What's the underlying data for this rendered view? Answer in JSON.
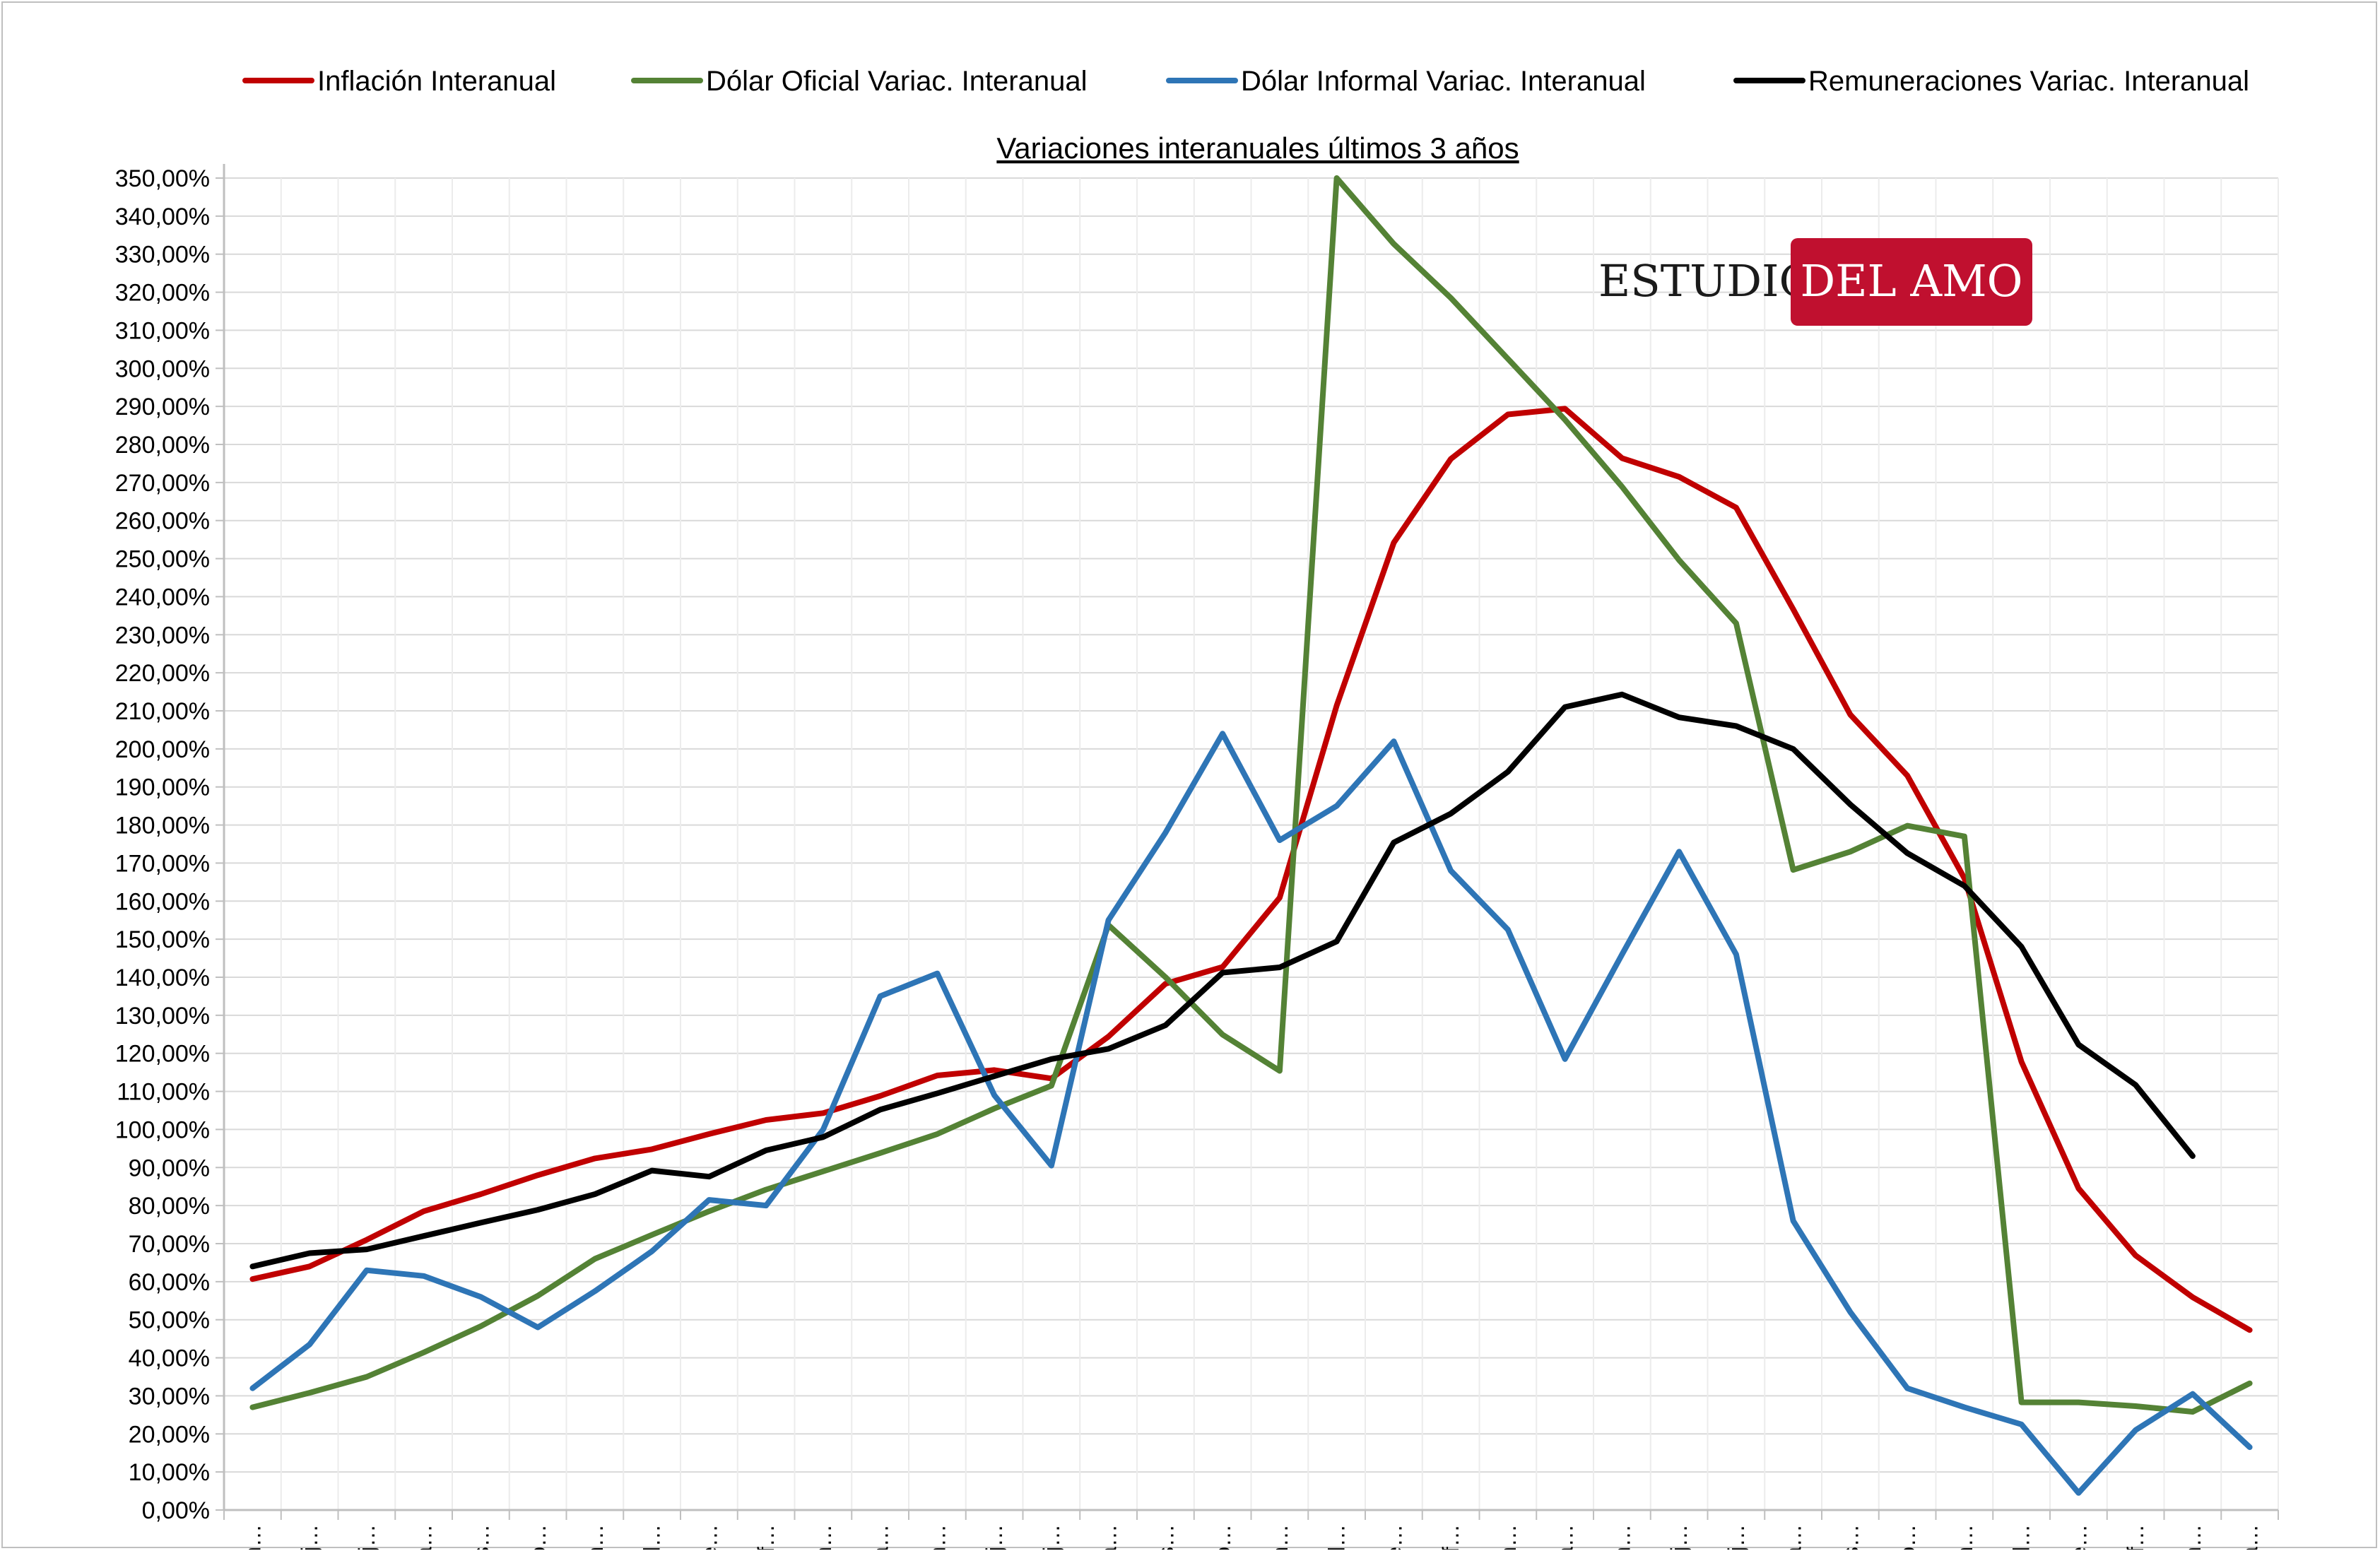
{
  "chart_data": {
    "type": "line",
    "title": "Variaciones interanuales últimos 3 años",
    "xlabel": "",
    "ylabel": "",
    "ylim": [
      0,
      350
    ],
    "ytick_step": 10,
    "grid": true,
    "legend_position": "top",
    "categories": [
      "m…",
      "j…",
      "j…",
      "a…",
      "s…",
      "o…",
      "n…",
      "d…",
      "e…",
      "f…",
      "m…",
      "a…",
      "m…",
      "j…",
      "j…",
      "a…",
      "s…",
      "o…",
      "n…",
      "d…",
      "e…",
      "f…",
      "m…",
      "a…",
      "m…",
      "j…",
      "j…",
      "a…",
      "s…",
      "o…",
      "n…",
      "d…",
      "e…",
      "f…",
      "m…",
      "a…"
    ],
    "series": [
      {
        "name": "Inflación Interanual",
        "color": "#c00000",
        "values": [
          60.7,
          64.0,
          71.0,
          78.5,
          83.0,
          88.0,
          92.4,
          94.8,
          98.8,
          102.5,
          104.3,
          108.8,
          114.2,
          115.6,
          113.4,
          124.4,
          138.3,
          142.7,
          160.9,
          211.4,
          254.2,
          276.2,
          287.9,
          289.4,
          276.4,
          271.5,
          263.4,
          236.7,
          209.0,
          193.0,
          166.0,
          117.8,
          84.5,
          66.9,
          55.9,
          47.3
        ]
      },
      {
        "name": "Dólar Oficial Variac. Interanual",
        "color": "#548235",
        "values": [
          27.0,
          30.8,
          35.0,
          41.4,
          48.3,
          56.3,
          66.0,
          72.3,
          78.5,
          84.2,
          89.0,
          93.8,
          98.8,
          105.5,
          111.5,
          153.7,
          140.0,
          124.9,
          115.4,
          350.0,
          332.7,
          318.5,
          302.5,
          286.5,
          268.9,
          249.6,
          233.0,
          168.2,
          173.0,
          179.8,
          177.0,
          28.3,
          28.3,
          27.3,
          25.8,
          33.3
        ]
      },
      {
        "name": "Dólar Informal Variac. Interanual",
        "color": "#2e75b6",
        "values": [
          32.0,
          43.5,
          63.0,
          61.5,
          56.0,
          48.0,
          57.5,
          68.0,
          81.5,
          80.0,
          100.0,
          135.0,
          141.0,
          109.0,
          90.5,
          155.0,
          178.0,
          204.0,
          176.0,
          185.0,
          202.0,
          168.0,
          152.5,
          118.5,
          146.0,
          173.0,
          146.0,
          76.0,
          52.0,
          32.0,
          27.0,
          22.5,
          4.5,
          21.0,
          30.5,
          16.5
        ]
      },
      {
        "name": "Remuneraciones Variac. Interanual",
        "color": "#000000",
        "values": [
          64.0,
          67.5,
          68.5,
          72.0,
          75.5,
          78.9,
          83.0,
          89.2,
          87.6,
          94.5,
          98.0,
          105.2,
          109.5,
          114.0,
          118.5,
          121.2,
          127.4,
          141.2,
          142.6,
          149.4,
          175.4,
          183.0,
          194.0,
          211.0,
          214.3,
          208.3,
          206.0,
          200.0,
          185.4,
          172.6,
          164.0,
          148.0,
          122.3,
          111.7,
          93.0,
          null
        ]
      }
    ]
  },
  "logo": {
    "left_text": "ESTUDIO",
    "right_text": "DEL AMO",
    "left_color": "#1a1a1a",
    "badge_color": "#c0102f",
    "right_color": "#ffffff"
  },
  "colors": {
    "grid": "#d9d9d9",
    "axis": "#bfbfbf",
    "background": "#ffffff"
  }
}
